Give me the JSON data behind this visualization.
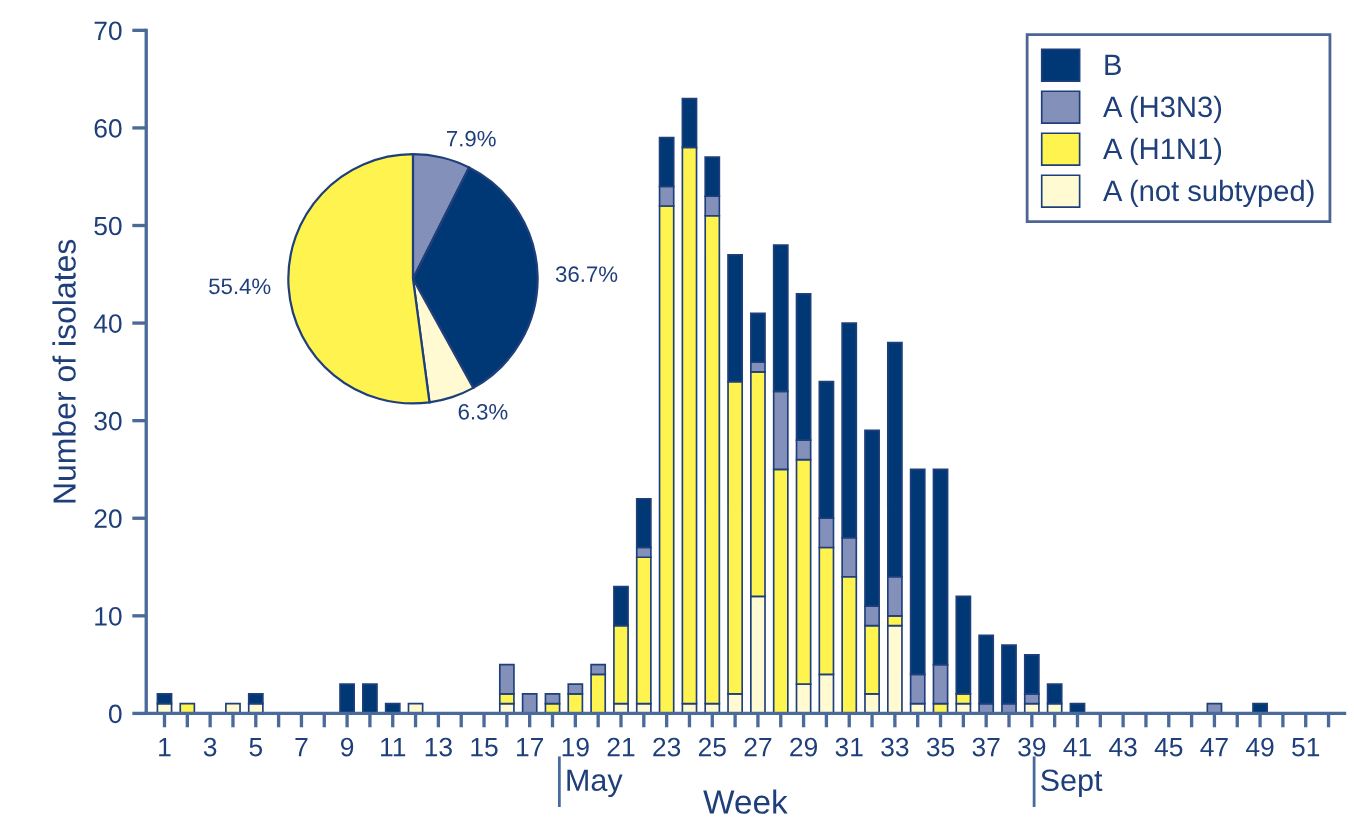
{
  "chart_data": [
    {
      "type": "bar",
      "stacked": true,
      "xlabel": "Week",
      "ylabel": "Number of isolates",
      "x": [
        1,
        2,
        3,
        4,
        5,
        6,
        7,
        8,
        9,
        10,
        11,
        12,
        13,
        14,
        15,
        16,
        17,
        18,
        19,
        20,
        21,
        22,
        23,
        24,
        25,
        26,
        27,
        28,
        29,
        30,
        31,
        32,
        33,
        34,
        35,
        36,
        37,
        38,
        39,
        40,
        41,
        42,
        43,
        44,
        45,
        46,
        47,
        48,
        49,
        50,
        51,
        52
      ],
      "series": [
        {
          "name": "A (not subtyped)",
          "color": "#fffad2",
          "values": [
            1,
            0,
            0,
            1,
            1,
            0,
            0,
            0,
            0,
            0,
            0,
            1,
            0,
            0,
            0,
            1,
            0,
            0,
            0,
            0,
            1,
            1,
            0,
            1,
            1,
            2,
            12,
            0,
            3,
            4,
            0,
            2,
            9,
            1,
            0,
            1,
            0,
            0,
            1,
            1,
            0,
            0,
            0,
            0,
            0,
            0,
            0,
            0,
            0,
            0,
            0,
            0
          ]
        },
        {
          "name": "A (H1N1)",
          "color": "#fff34f",
          "values": [
            0,
            1,
            0,
            0,
            0,
            0,
            0,
            0,
            0,
            0,
            0,
            0,
            0,
            0,
            0,
            1,
            0,
            1,
            2,
            4,
            8,
            15,
            52,
            57,
            50,
            32,
            23,
            25,
            23,
            13,
            14,
            7,
            1,
            0,
            1,
            1,
            0,
            0,
            0,
            0,
            0,
            0,
            0,
            0,
            0,
            0,
            0,
            0,
            0,
            0,
            0,
            0
          ]
        },
        {
          "name": "A (H3N3)",
          "color": "#8391ba",
          "values": [
            0,
            0,
            0,
            0,
            0,
            0,
            0,
            0,
            0,
            0,
            0,
            0,
            0,
            0,
            0,
            3,
            2,
            1,
            1,
            1,
            0,
            1,
            2,
            0,
            2,
            0,
            1,
            8,
            2,
            3,
            4,
            2,
            4,
            3,
            4,
            0,
            1,
            1,
            1,
            0,
            0,
            0,
            0,
            0,
            0,
            0,
            1,
            0,
            0,
            0,
            0,
            0
          ]
        },
        {
          "name": "B",
          "color": "#003876",
          "values": [
            1,
            0,
            0,
            0,
            1,
            0,
            0,
            0,
            3,
            3,
            1,
            0,
            0,
            0,
            0,
            0,
            0,
            0,
            0,
            0,
            4,
            5,
            5,
            5,
            4,
            13,
            5,
            15,
            15,
            14,
            22,
            18,
            24,
            21,
            20,
            10,
            7,
            6,
            4,
            2,
            1,
            0,
            0,
            0,
            0,
            0,
            0,
            0,
            1,
            0,
            0,
            0
          ]
        }
      ],
      "xlim": [
        0.2,
        52.7
      ],
      "ylim": [
        0,
        70
      ],
      "yticks": [
        0,
        10,
        20,
        30,
        40,
        50,
        60,
        70
      ],
      "xticks": [
        1,
        {
          "value": 2,
          "label": null
        },
        3,
        {
          "value": 4,
          "label": null
        },
        5,
        {
          "value": 6,
          "label": null
        },
        7,
        {
          "value": 8,
          "label": null
        },
        9,
        {
          "value": 10,
          "label": null
        },
        11,
        {
          "value": 12,
          "label": null
        },
        13,
        {
          "value": 14,
          "label": null
        },
        15,
        {
          "value": 16,
          "label": null
        },
        17,
        {
          "value": 18,
          "label": null
        },
        19,
        {
          "value": 20,
          "label": null
        },
        21,
        {
          "value": 22,
          "label": null
        },
        23,
        {
          "value": 24,
          "label": null
        },
        25,
        {
          "value": 26,
          "label": null
        },
        27,
        {
          "value": 28,
          "label": null
        },
        29,
        {
          "value": 30,
          "label": null
        },
        31,
        {
          "value": 32,
          "label": null
        },
        33,
        {
          "value": 34,
          "label": null
        },
        35,
        {
          "value": 36,
          "label": null
        },
        37,
        {
          "value": 38,
          "label": null
        },
        39,
        {
          "value": 40,
          "label": null
        },
        41,
        {
          "value": 42,
          "label": null
        },
        43,
        {
          "value": 44,
          "label": null
        },
        45,
        {
          "value": 46,
          "label": null
        },
        47,
        {
          "value": 48,
          "label": null
        },
        49,
        {
          "value": 50,
          "label": null
        },
        51,
        {
          "value": 52,
          "label": null
        }
      ],
      "annotations": [
        {
          "text": "May",
          "x": 18.3,
          "y": 0
        },
        {
          "text": "Sept",
          "x": 39.1,
          "y": 0
        }
      ],
      "grid": false,
      "legend": "top right"
    },
    {
      "type": "pie",
      "categories": [
        null,
        null,
        null,
        null
      ],
      "values": [
        7.9,
        36.7,
        6.3,
        55.4
      ],
      "colors": [
        "#8391ba",
        "#003876",
        "#fffad2",
        "#fff34f"
      ],
      "value_labels": [
        "7.9%",
        "36.7%",
        "6.3%",
        "55.4%"
      ]
    }
  ]
}
